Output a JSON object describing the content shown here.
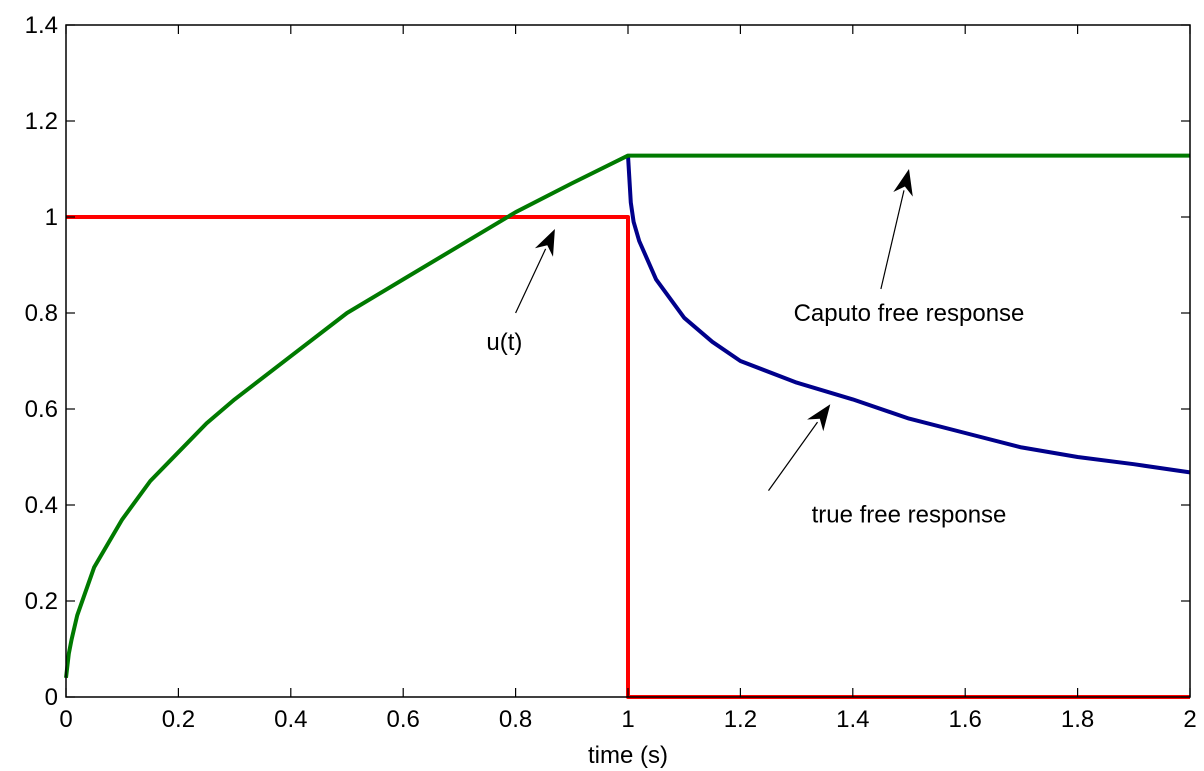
{
  "chart_data": {
    "type": "line",
    "title": "",
    "xlabel": "time (s)",
    "ylabel": "",
    "xlim": [
      0,
      2
    ],
    "ylim": [
      0,
      1.4
    ],
    "xticks": [
      0,
      0.2,
      0.4,
      0.6,
      0.8,
      1,
      1.2,
      1.4,
      1.6,
      1.8,
      2
    ],
    "xtick_labels": [
      "0",
      "0.2",
      "0.4",
      "0.6",
      "0.8",
      "1",
      "1.2",
      "1.4",
      "1.6",
      "1.8",
      "2"
    ],
    "yticks": [
      0,
      0.2,
      0.4,
      0.6,
      0.8,
      1,
      1.2,
      1.4
    ],
    "ytick_labels": [
      "0",
      "0.2",
      "0.4",
      "0.6",
      "0.8",
      "1",
      "1.2",
      "1.4"
    ],
    "grid": false,
    "legend": "none",
    "series": [
      {
        "color": "#ff0000",
        "x": [
          0,
          1,
          1,
          2
        ],
        "y": [
          1,
          1,
          0,
          0
        ]
      },
      {
        "color": "#00008b",
        "x": [
          1,
          1.005,
          1.01,
          1.02,
          1.05,
          1.1,
          1.15,
          1.2,
          1.3,
          1.4,
          1.5,
          1.6,
          1.7,
          1.8,
          1.9,
          2
        ],
        "y": [
          1.128,
          1.03,
          0.99,
          0.95,
          0.87,
          0.79,
          0.74,
          0.7,
          0.655,
          0.62,
          0.58,
          0.55,
          0.52,
          0.5,
          0.485,
          0.468
        ]
      },
      {
        "color": "#007a00",
        "x": [
          0,
          0.005,
          0.01,
          0.02,
          0.05,
          0.1,
          0.15,
          0.2,
          0.25,
          0.3,
          0.4,
          0.5,
          0.6,
          0.7,
          0.8,
          0.9,
          1,
          2
        ],
        "y": [
          0.04,
          0.09,
          0.12,
          0.17,
          0.27,
          0.37,
          0.45,
          0.51,
          0.57,
          0.62,
          0.71,
          0.8,
          0.87,
          0.94,
          1.01,
          1.07,
          1.128,
          1.128
        ]
      }
    ],
    "annotations": [
      {
        "text": "u(t)",
        "text_x": 0.78,
        "text_y": 0.74,
        "arrow_tail": [
          0.8,
          0.8
        ],
        "arrow_head": [
          0.87,
          0.975
        ]
      },
      {
        "text": "Caputo free response",
        "text_x": 1.5,
        "text_y": 0.8,
        "arrow_tail": [
          1.45,
          0.85
        ],
        "arrow_head": [
          1.5,
          1.1
        ]
      },
      {
        "text": "true free response",
        "text_x": 1.5,
        "text_y": 0.38,
        "arrow_tail": [
          1.25,
          0.43
        ],
        "arrow_head": [
          1.36,
          0.61
        ]
      }
    ]
  }
}
